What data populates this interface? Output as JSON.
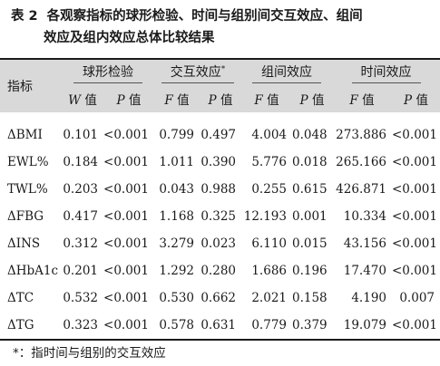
{
  "caption": {
    "label": "表 2",
    "line1": "各观察指标的球形检验、时间与组别间交互效应、组间",
    "line2": "效应及组内效应总体比较结果"
  },
  "header": {
    "index_label": "指标",
    "groups": [
      {
        "label": "球形检验",
        "mark": ""
      },
      {
        "label": "交互效应",
        "mark": "*"
      },
      {
        "label": "组间效应",
        "mark": ""
      },
      {
        "label": "时间效应",
        "mark": ""
      }
    ],
    "subheaders": [
      {
        "letter": "W",
        "suffix": "值"
      },
      {
        "letter": "P",
        "suffix": "值"
      },
      {
        "letter": "F",
        "suffix": "值"
      },
      {
        "letter": "P",
        "suffix": "值"
      },
      {
        "letter": "F",
        "suffix": "值"
      },
      {
        "letter": "P",
        "suffix": "值"
      },
      {
        "letter": "F",
        "suffix": "值"
      },
      {
        "letter": "P",
        "suffix": "值"
      }
    ]
  },
  "rows": [
    {
      "name": "ΔBMI",
      "cells": [
        "0.101",
        "<0.001",
        "0.799",
        "0.497",
        "4.004",
        "0.048",
        "273.886",
        "<0.001"
      ]
    },
    {
      "name": "EWL%",
      "cells": [
        "0.184",
        "<0.001",
        "1.011",
        "0.390",
        "5.776",
        "0.018",
        "265.166",
        "<0.001"
      ]
    },
    {
      "name": "TWL%",
      "cells": [
        "0.203",
        "<0.001",
        "0.043",
        "0.988",
        "0.255",
        "0.615",
        "426.871",
        "<0.001"
      ]
    },
    {
      "name": "ΔFBG",
      "cells": [
        "0.417",
        "<0.001",
        "1.168",
        "0.325",
        "12.193",
        "0.001",
        "10.334",
        "<0.001"
      ]
    },
    {
      "name": "ΔINS",
      "cells": [
        "0.312",
        "<0.001",
        "3.279",
        "0.023",
        "6.110",
        "0.015",
        "43.156",
        "<0.001"
      ]
    },
    {
      "name": "ΔHbA1c",
      "cells": [
        "0.201",
        "<0.001",
        "1.292",
        "0.280",
        "1.686",
        "0.196",
        "17.470",
        "<0.001"
      ]
    },
    {
      "name": "ΔTC",
      "cells": [
        "0.532",
        "<0.001",
        "0.530",
        "0.662",
        "2.021",
        "0.158",
        "4.190",
        "0.007"
      ]
    },
    {
      "name": "ΔTG",
      "cells": [
        "0.323",
        "<0.001",
        "0.578",
        "0.631",
        "0.779",
        "0.379",
        "19.079",
        "<0.001"
      ]
    }
  ],
  "footnote": "*：指时间与组别的交互效应"
}
